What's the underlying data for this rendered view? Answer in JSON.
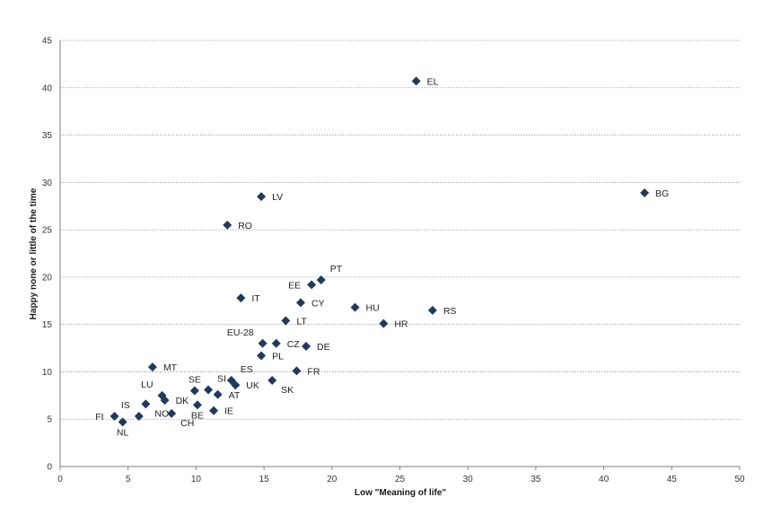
{
  "chart_data": {
    "type": "scatter",
    "xlabel": "Low \"Meaning of life\"",
    "ylabel": "Happy none or little of the time",
    "xlim": [
      0,
      50
    ],
    "ylim": [
      0,
      45
    ],
    "x_ticks": [
      "0",
      "5",
      "10",
      "15",
      "20",
      "25",
      "30",
      "35",
      "40",
      "45",
      "50"
    ],
    "y_ticks": [
      "0",
      "5",
      "10",
      "15",
      "20",
      "25",
      "30",
      "35",
      "40",
      "45"
    ],
    "grid": "horizontal dotted",
    "legend": "none",
    "marker_color": "#1f3a5f",
    "points": [
      {
        "label": "EL",
        "x": 26.2,
        "y": 40.7,
        "pos": "right"
      },
      {
        "label": "BG",
        "x": 43.0,
        "y": 28.9,
        "pos": "right"
      },
      {
        "label": "LV",
        "x": 14.8,
        "y": 28.5,
        "pos": "right"
      },
      {
        "label": "RO",
        "x": 12.3,
        "y": 25.5,
        "pos": "right"
      },
      {
        "label": "PT",
        "x": 19.2,
        "y": 19.7,
        "pos": "above-right"
      },
      {
        "label": "EE",
        "x": 18.5,
        "y": 19.2,
        "pos": "left"
      },
      {
        "label": "IT",
        "x": 13.3,
        "y": 17.8,
        "pos": "right"
      },
      {
        "label": "CY",
        "x": 17.7,
        "y": 17.3,
        "pos": "right"
      },
      {
        "label": "HU",
        "x": 21.7,
        "y": 16.8,
        "pos": "right"
      },
      {
        "label": "RS",
        "x": 27.4,
        "y": 16.5,
        "pos": "right"
      },
      {
        "label": "LT",
        "x": 16.6,
        "y": 15.4,
        "pos": "right"
      },
      {
        "label": "HR",
        "x": 23.8,
        "y": 15.1,
        "pos": "right"
      },
      {
        "label": "EU-28",
        "x": 14.9,
        "y": 13.0,
        "pos": "above-left"
      },
      {
        "label": "CZ",
        "x": 15.9,
        "y": 13.0,
        "pos": "right"
      },
      {
        "label": "DE",
        "x": 18.1,
        "y": 12.7,
        "pos": "right"
      },
      {
        "label": "PL",
        "x": 14.8,
        "y": 11.7,
        "pos": "right"
      },
      {
        "label": "MT",
        "x": 6.8,
        "y": 10.5,
        "pos": "right"
      },
      {
        "label": "FR",
        "x": 17.4,
        "y": 10.1,
        "pos": "right"
      },
      {
        "label": "ES",
        "x": 12.6,
        "y": 9.1,
        "pos": "above-right"
      },
      {
        "label": "SK",
        "x": 15.6,
        "y": 9.1,
        "pos": "below-right"
      },
      {
        "label": "UK",
        "x": 12.9,
        "y": 8.6,
        "pos": "right"
      },
      {
        "label": "SE",
        "x": 9.9,
        "y": 8.0,
        "pos": "above"
      },
      {
        "label": "SI",
        "x": 10.9,
        "y": 8.1,
        "pos": "above-right"
      },
      {
        "label": "AT",
        "x": 11.6,
        "y": 7.6,
        "pos": "right"
      },
      {
        "label": "LU",
        "x": 7.5,
        "y": 7.5,
        "pos": "above-left"
      },
      {
        "label": "DK",
        "x": 7.7,
        "y": 7.0,
        "pos": "right"
      },
      {
        "label": "NO",
        "x": 6.3,
        "y": 6.6,
        "pos": "below-right"
      },
      {
        "label": "BE",
        "x": 10.1,
        "y": 6.5,
        "pos": "below"
      },
      {
        "label": "IE",
        "x": 11.3,
        "y": 5.9,
        "pos": "right"
      },
      {
        "label": "CH",
        "x": 8.2,
        "y": 5.6,
        "pos": "below-right"
      },
      {
        "label": "IS",
        "x": 5.8,
        "y": 5.3,
        "pos": "above-left"
      },
      {
        "label": "FI",
        "x": 4.0,
        "y": 5.3,
        "pos": "left"
      },
      {
        "label": "NL",
        "x": 4.6,
        "y": 4.7,
        "pos": "below"
      }
    ]
  }
}
